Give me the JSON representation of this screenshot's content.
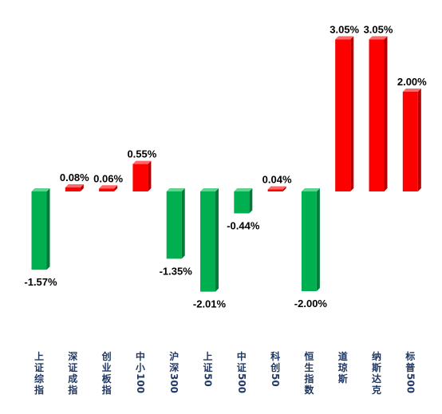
{
  "chart_data": {
    "type": "bar",
    "categories": [
      "上证综指",
      "深证成指",
      "创业板指",
      "中小100",
      "沪深300",
      "上证50",
      "中证500",
      "科创50",
      "恒生指数",
      "道琼斯",
      "纳斯达克",
      "标普500"
    ],
    "values": [
      -1.57,
      0.08,
      0.06,
      0.55,
      -1.35,
      -2.01,
      -0.44,
      0.04,
      -2.0,
      3.05,
      3.05,
      2.0
    ],
    "value_labels": [
      "-1.57%",
      "0.08%",
      "0.06%",
      "0.55%",
      "-1.35%",
      "-2.01%",
      "-0.44%",
      "0.04%",
      "-2.00%",
      "3.05%",
      "3.05%",
      "2.00%"
    ],
    "ylim": [
      -2.1,
      3.2
    ],
    "grid": false,
    "legend": "none",
    "colors": {
      "positive": "#ff0000",
      "positive_side": "#b30000",
      "positive_top": "#ff6666",
      "negative": "#00b050",
      "negative_side": "#007a37",
      "negative_top": "#5fd38d",
      "label_text": "#1f3864"
    }
  }
}
